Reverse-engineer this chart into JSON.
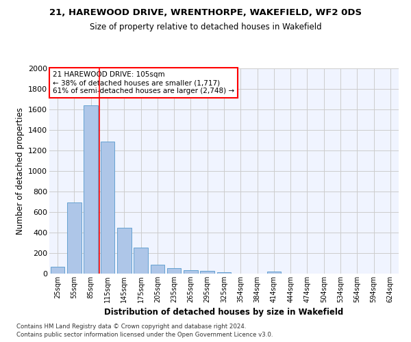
{
  "title": "21, HAREWOOD DRIVE, WRENTHORPE, WAKEFIELD, WF2 0DS",
  "subtitle": "Size of property relative to detached houses in Wakefield",
  "xlabel": "Distribution of detached houses by size in Wakefield",
  "ylabel": "Number of detached properties",
  "bar_color": "#aec6e8",
  "bar_edge_color": "#5599cc",
  "grid_color": "#cccccc",
  "bg_color": "#f0f4ff",
  "categories": [
    "25sqm",
    "55sqm",
    "85sqm",
    "115sqm",
    "145sqm",
    "175sqm",
    "205sqm",
    "235sqm",
    "265sqm",
    "295sqm",
    "325sqm",
    "354sqm",
    "384sqm",
    "414sqm",
    "444sqm",
    "474sqm",
    "504sqm",
    "534sqm",
    "564sqm",
    "594sqm",
    "624sqm"
  ],
  "values": [
    65,
    695,
    1640,
    1285,
    445,
    255,
    90,
    55,
    35,
    28,
    15,
    0,
    0,
    18,
    0,
    0,
    0,
    0,
    0,
    0,
    0
  ],
  "ylim": [
    0,
    2000
  ],
  "yticks": [
    0,
    200,
    400,
    600,
    800,
    1000,
    1200,
    1400,
    1600,
    1800,
    2000
  ],
  "red_line_x": 2.5,
  "annotation_title": "21 HAREWOOD DRIVE: 105sqm",
  "annotation_line1": "← 38% of detached houses are smaller (1,717)",
  "annotation_line2": "61% of semi-detached houses are larger (2,748) →",
  "footer1": "Contains HM Land Registry data © Crown copyright and database right 2024.",
  "footer2": "Contains public sector information licensed under the Open Government Licence v3.0."
}
